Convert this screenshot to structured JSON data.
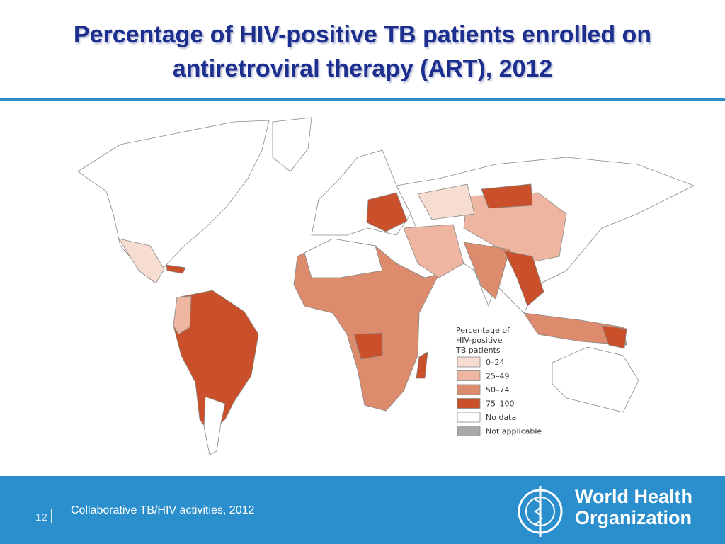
{
  "header": {
    "title_lines": [
      "Percentage of HIV-positive TB patients enrolled on",
      "antiretroviral therapy (ART), 2012"
    ]
  },
  "legend": {
    "title_lines": [
      "Percentage of",
      "HIV-positive",
      "TB patients"
    ],
    "items": [
      {
        "label": "0–24",
        "color": "#f7ddd1"
      },
      {
        "label": "25–49",
        "color": "#eeb6a1"
      },
      {
        "label": "50–74",
        "color": "#dd8b6d"
      },
      {
        "label": "75–100",
        "color": "#c9502b"
      },
      {
        "label": "No data",
        "color": "#ffffff"
      },
      {
        "label": "Not applicable",
        "color": "#a9a9a9"
      }
    ]
  },
  "footer": {
    "page": "12",
    "text": "Collaborative TB/HIV activities, 2012",
    "org_lines": [
      "World Health",
      "Organization"
    ]
  }
}
